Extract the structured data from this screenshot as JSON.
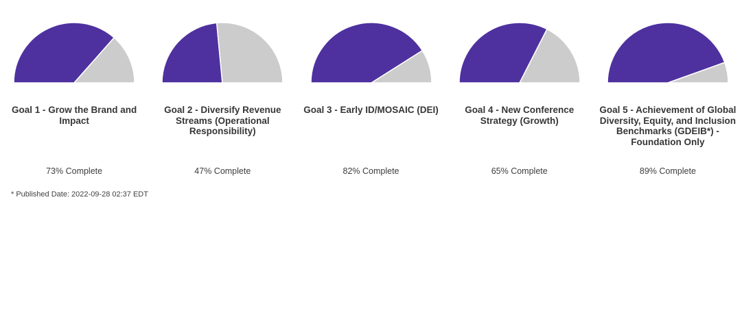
{
  "page": {
    "background_color": "#ffffff",
    "footnote": "* Published Date: 2022-09-28 02:37 EDT"
  },
  "colors": {
    "complete_slice": "#4E319F",
    "remaining_slice": "#CCCCCC",
    "slice_separator": "#FFFFFF",
    "title_text": "#363636",
    "label_text": "#3d3d3d"
  },
  "chart_data": [
    {
      "type": "pie",
      "variant": "half-pie-gauge",
      "title": "Goal 1 - Grow the Brand and\nImpact",
      "percent_complete": 73,
      "label": "73% Complete",
      "slices": [
        {
          "name": "Complete",
          "value": 73,
          "color": "#4E319F"
        },
        {
          "name": "Remaining",
          "value": 27,
          "color": "#CCCCCC"
        }
      ]
    },
    {
      "type": "pie",
      "variant": "half-pie-gauge",
      "title": "Goal 2 - Diversify Revenue\nStreams (Operational\nResponsibility)",
      "percent_complete": 47,
      "label": "47% Complete",
      "slices": [
        {
          "name": "Complete",
          "value": 47,
          "color": "#4E319F"
        },
        {
          "name": "Remaining",
          "value": 53,
          "color": "#CCCCCC"
        }
      ]
    },
    {
      "type": "pie",
      "variant": "half-pie-gauge",
      "title": "Goal 3 - Early ID/MOSAIC (DEI)",
      "percent_complete": 82,
      "label": "82% Complete",
      "slices": [
        {
          "name": "Complete",
          "value": 82,
          "color": "#4E319F"
        },
        {
          "name": "Remaining",
          "value": 18,
          "color": "#CCCCCC"
        }
      ]
    },
    {
      "type": "pie",
      "variant": "half-pie-gauge",
      "title": "Goal 4 - New Conference\nStrategy (Growth)",
      "percent_complete": 65,
      "label": "65% Complete",
      "slices": [
        {
          "name": "Complete",
          "value": 65,
          "color": "#4E319F"
        },
        {
          "name": "Remaining",
          "value": 35,
          "color": "#CCCCCC"
        }
      ]
    },
    {
      "type": "pie",
      "variant": "half-pie-gauge",
      "title": "Goal 5 - Achievement of Global\nDiversity, Equity, and Inclusion\nBenchmarks (GDEIB*) -\nFoundation Only",
      "percent_complete": 89,
      "label": "89% Complete",
      "slices": [
        {
          "name": "Complete",
          "value": 89,
          "color": "#4E319F"
        },
        {
          "name": "Remaining",
          "value": 11,
          "color": "#CCCCCC"
        }
      ]
    }
  ]
}
